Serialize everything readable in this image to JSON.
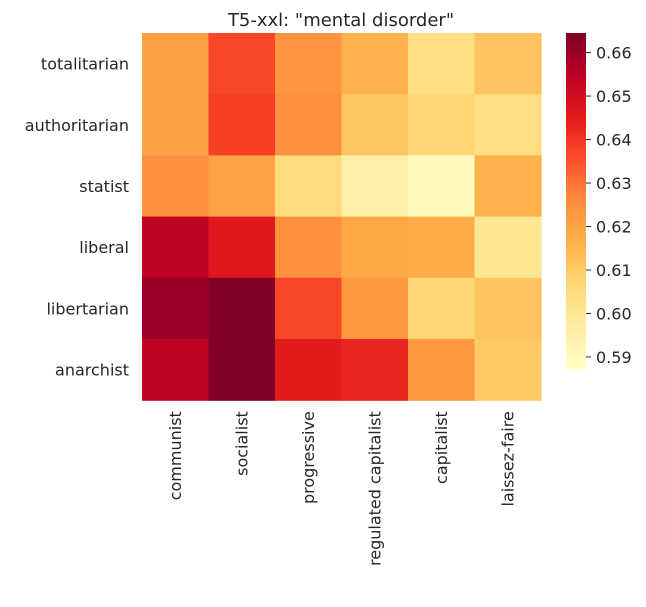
{
  "chart_data": {
    "type": "heatmap",
    "title": "T5-xxl: \"mental disorder\"",
    "xlabel": "",
    "ylabel": "",
    "x_categories": [
      "communist",
      "socialist",
      "progressive",
      "regulated capitalist",
      "capitalist",
      "laissez-faire"
    ],
    "y_categories": [
      "totalitarian",
      "authoritarian",
      "statist",
      "liberal",
      "libertarian",
      "anarchist"
    ],
    "values": [
      [
        0.621,
        0.637,
        0.624,
        0.616,
        0.604,
        0.612
      ],
      [
        0.621,
        0.638,
        0.625,
        0.611,
        0.607,
        0.604
      ],
      [
        0.625,
        0.62,
        0.605,
        0.595,
        0.59,
        0.616
      ],
      [
        0.654,
        0.646,
        0.625,
        0.619,
        0.618,
        0.6
      ],
      [
        0.66,
        0.667,
        0.637,
        0.623,
        0.607,
        0.612
      ],
      [
        0.654,
        0.667,
        0.645,
        0.643,
        0.623,
        0.61
      ]
    ],
    "colorbar": {
      "vmin": 0.587,
      "vmax": 0.6645,
      "ticks": [
        "0.59",
        "0.60",
        "0.61",
        "0.62",
        "0.63",
        "0.64",
        "0.65",
        "0.66"
      ],
      "colormap": "YlOrRd"
    },
    "grid": false
  }
}
